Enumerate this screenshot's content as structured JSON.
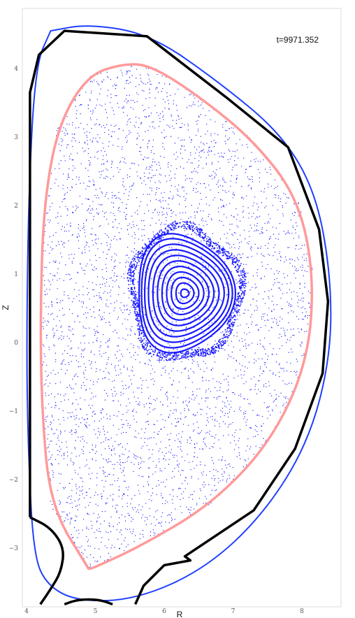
{
  "chart_data": {
    "type": "scatter",
    "title": "",
    "xlabel": "R",
    "ylabel": "Z",
    "xlim": [
      3.95,
      8.55
    ],
    "ylim": [
      -3.82,
      4.65
    ],
    "xticks": [
      4,
      5,
      6,
      7,
      8
    ],
    "yticks": [
      -3,
      -2,
      -1,
      0,
      1,
      2,
      3,
      4
    ],
    "x_tick_labels": [
      "4",
      "5",
      "6",
      "7",
      "8"
    ],
    "y_tick_labels": [
      "−3",
      "−2",
      "−1",
      "0",
      "1",
      "2",
      "3",
      "4"
    ],
    "annotation": "t=9971.352",
    "grid": false,
    "legend": "none",
    "colors": {
      "wall": "#000000",
      "separatrix": "#1f3fff",
      "boundary": "#ff9a9a",
      "points": "#1a1aff",
      "frame": "#dddddd"
    },
    "magnetic_axis": [
      6.3,
      0.72
    ],
    "wall_outline": [
      [
        4.05,
        -2.55
      ],
      [
        4.05,
        3.65
      ],
      [
        4.18,
        4.2
      ],
      [
        4.55,
        4.55
      ],
      [
        5.75,
        4.47
      ],
      [
        6.9,
        3.58
      ],
      [
        7.8,
        2.85
      ],
      [
        8.25,
        1.65
      ],
      [
        8.38,
        0.6
      ],
      [
        8.3,
        -0.45
      ],
      [
        7.9,
        -1.55
      ],
      [
        7.3,
        -2.45
      ],
      [
        6.3,
        -3.12
      ],
      [
        6.38,
        -3.18
      ],
      [
        6.0,
        -3.25
      ],
      [
        5.7,
        -3.55
      ],
      [
        5.58,
        -3.82
      ]
    ],
    "wall_lower_left_arc": [
      [
        4.05,
        -2.55
      ],
      [
        4.35,
        -2.7
      ],
      [
        4.55,
        -3.0
      ],
      [
        4.5,
        -3.35
      ],
      [
        4.35,
        -3.6
      ],
      [
        4.2,
        -3.82
      ]
    ],
    "wall_bottom_bump": [
      [
        4.55,
        -3.82
      ],
      [
        4.75,
        -3.75
      ],
      [
        5.05,
        -3.75
      ],
      [
        5.25,
        -3.82
      ]
    ],
    "separatrix_outline": [
      [
        4.35,
        4.55
      ],
      [
        4.9,
        4.65
      ],
      [
        5.8,
        4.5
      ],
      [
        6.8,
        3.8
      ],
      [
        7.7,
        3.05
      ],
      [
        8.2,
        2.2
      ],
      [
        8.42,
        1.0
      ],
      [
        8.42,
        -0.2
      ],
      [
        8.1,
        -1.45
      ],
      [
        7.45,
        -2.5
      ],
      [
        6.6,
        -3.3
      ],
      [
        5.6,
        -3.75
      ],
      [
        4.75,
        -3.78
      ],
      [
        4.3,
        -3.55
      ],
      [
        4.1,
        -3.1
      ],
      [
        4.02,
        -1.5
      ],
      [
        4.0,
        0.0
      ],
      [
        4.03,
        2.2
      ],
      [
        4.13,
        4.05
      ],
      [
        4.35,
        4.55
      ]
    ],
    "plasma_boundary": [
      [
        4.9,
        -3.3
      ],
      [
        4.35,
        -2.4
      ],
      [
        4.22,
        -1.0
      ],
      [
        4.2,
        0.5
      ],
      [
        4.25,
        2.0
      ],
      [
        4.45,
        3.15
      ],
      [
        4.88,
        3.9
      ],
      [
        5.4,
        4.07
      ],
      [
        5.8,
        4.05
      ],
      [
        6.5,
        3.6
      ],
      [
        7.3,
        2.95
      ],
      [
        7.95,
        2.1
      ],
      [
        8.18,
        0.95
      ],
      [
        8.08,
        -0.3
      ],
      [
        7.55,
        -1.45
      ],
      [
        6.7,
        -2.35
      ],
      [
        5.7,
        -2.95
      ],
      [
        4.95,
        -3.3
      ],
      [
        4.9,
        -3.3
      ]
    ],
    "core_surfaces": [
      {
        "r": 0.06,
        "zr": 0.06
      },
      {
        "r": 0.13,
        "zr": 0.15
      },
      {
        "r": 0.2,
        "zr": 0.23
      },
      {
        "r": 0.27,
        "zr": 0.31
      },
      {
        "r": 0.34,
        "zr": 0.39
      },
      {
        "r": 0.41,
        "zr": 0.47
      },
      {
        "r": 0.48,
        "zr": 0.55
      },
      {
        "r": 0.55,
        "zr": 0.63
      },
      {
        "r": 0.61,
        "zr": 0.71
      },
      {
        "r": 0.66,
        "zr": 0.79
      },
      {
        "r": 0.7,
        "zr": 0.86
      }
    ]
  }
}
